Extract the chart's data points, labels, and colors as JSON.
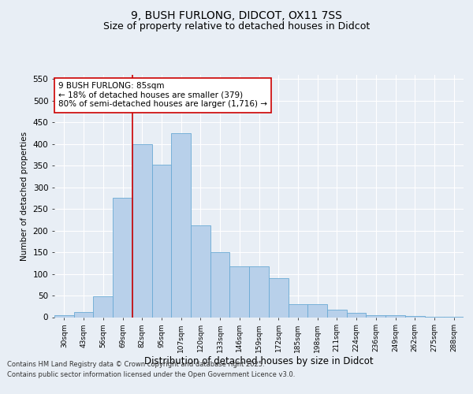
{
  "title1": "9, BUSH FURLONG, DIDCOT, OX11 7SS",
  "title2": "Size of property relative to detached houses in Didcot",
  "xlabel": "Distribution of detached houses by size in Didcot",
  "ylabel": "Number of detached properties",
  "footnote1": "Contains HM Land Registry data © Crown copyright and database right 2025.",
  "footnote2": "Contains public sector information licensed under the Open Government Licence v3.0.",
  "bar_labels": [
    "30sqm",
    "43sqm",
    "56sqm",
    "69sqm",
    "82sqm",
    "95sqm",
    "107sqm",
    "120sqm",
    "133sqm",
    "146sqm",
    "159sqm",
    "172sqm",
    "185sqm",
    "198sqm",
    "211sqm",
    "224sqm",
    "236sqm",
    "249sqm",
    "262sqm",
    "275sqm",
    "288sqm"
  ],
  "bar_values": [
    5,
    12,
    48,
    275,
    400,
    352,
    425,
    212,
    150,
    117,
    117,
    90,
    30,
    30,
    17,
    10,
    4,
    4,
    2,
    1,
    1
  ],
  "bar_color": "#b8d0ea",
  "bar_edge_color": "#6aaad4",
  "annotation_text": "9 BUSH FURLONG: 85sqm\n← 18% of detached houses are smaller (379)\n80% of semi-detached houses are larger (1,716) →",
  "vline_x_index": 4,
  "ylim": [
    0,
    560
  ],
  "yticks": [
    0,
    50,
    100,
    150,
    200,
    250,
    300,
    350,
    400,
    450,
    500,
    550
  ],
  "bg_color": "#e8eef5",
  "plot_bg_color": "#e8eef5",
  "grid_color": "#ffffff",
  "title_fontsize": 10,
  "subtitle_fontsize": 9,
  "annotation_fontsize": 7.5,
  "annotation_box_color": "#ffffff",
  "annotation_box_edge_color": "#cc0000",
  "vline_color": "#cc0000"
}
